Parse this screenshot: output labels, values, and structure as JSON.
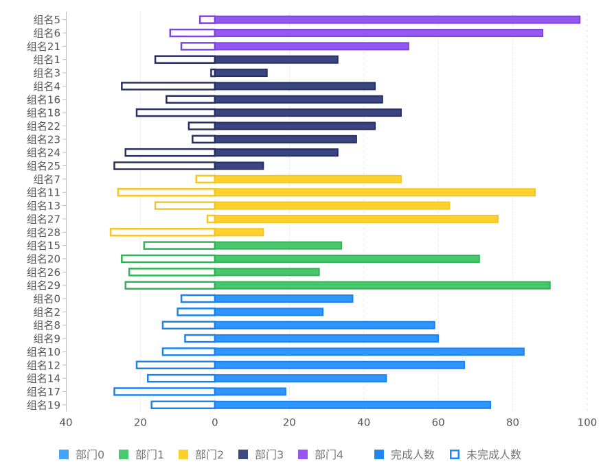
{
  "chart_data": {
    "type": "bar",
    "orientation": "horizontal",
    "categories": [
      "组名5",
      "组名6",
      "组名21",
      "组名1",
      "组名3",
      "组名4",
      "组名16",
      "组名18",
      "组名22",
      "组名23",
      "组名24",
      "组名25",
      "组名7",
      "组名11",
      "组名13",
      "组名27",
      "组名28",
      "组名15",
      "组名20",
      "组名26",
      "组名29",
      "组名0",
      "组名2",
      "组名8",
      "组名9",
      "组名10",
      "组名12",
      "组名14",
      "组名17",
      "组名19"
    ],
    "department_of_category": [
      4,
      4,
      4,
      3,
      3,
      3,
      3,
      3,
      3,
      3,
      3,
      3,
      2,
      2,
      2,
      2,
      2,
      1,
      1,
      1,
      1,
      0,
      0,
      0,
      0,
      0,
      0,
      0,
      0,
      0
    ],
    "series": [
      {
        "name": "完成人数",
        "style": "filled",
        "values": [
          98,
          88,
          52,
          33,
          14,
          43,
          45,
          50,
          43,
          38,
          33,
          13,
          50,
          86,
          63,
          76,
          13,
          34,
          71,
          28,
          90,
          37,
          29,
          59,
          60,
          83,
          67,
          46,
          19,
          74
        ]
      },
      {
        "name": "未完成人数",
        "style": "outline",
        "values": [
          4,
          12,
          9,
          16,
          1,
          25,
          13,
          21,
          7,
          6,
          24,
          27,
          5,
          26,
          16,
          2,
          28,
          19,
          25,
          23,
          24,
          9,
          10,
          14,
          8,
          14,
          21,
          18,
          27,
          17
        ]
      }
    ],
    "xaxis": {
      "min": -40,
      "max": 100,
      "ticks": [
        -40,
        -20,
        0,
        20,
        40,
        60,
        80,
        100
      ],
      "tick_labels": [
        "40",
        "20",
        "0",
        "20",
        "40",
        "60",
        "80",
        "100"
      ],
      "grid": "dashed"
    },
    "departments": [
      {
        "name": "部门0",
        "color": "#2f96ff"
      },
      {
        "name": "部门1",
        "color": "#47c86d"
      },
      {
        "name": "部门2",
        "color": "#fdd22e"
      },
      {
        "name": "部门3",
        "color": "#3b4680"
      },
      {
        "name": "部门4",
        "color": "#9358f0"
      }
    ],
    "outline_darker": [
      "#1b82ee",
      "#2fb455",
      "#f3c623",
      "#273066",
      "#7d44dc"
    ],
    "legend": {
      "position": "bottom",
      "items": [
        {
          "label": "部门0",
          "swatch": "square",
          "color": "#45a3ff"
        },
        {
          "label": "部门1",
          "swatch": "square",
          "color": "#4bc96e"
        },
        {
          "label": "部门2",
          "swatch": "square",
          "color": "#fcd12d"
        },
        {
          "label": "部门3",
          "swatch": "square",
          "color": "#3d487f"
        },
        {
          "label": "部门4",
          "swatch": "square",
          "color": "#9557ee"
        },
        {
          "label": "完成人数",
          "swatch": "square",
          "color": "#1f88f0"
        },
        {
          "label": "未完成人数",
          "swatch": "outline",
          "color": "#1f88f0"
        }
      ]
    },
    "title": "",
    "xlabel": "",
    "ylabel": ""
  }
}
